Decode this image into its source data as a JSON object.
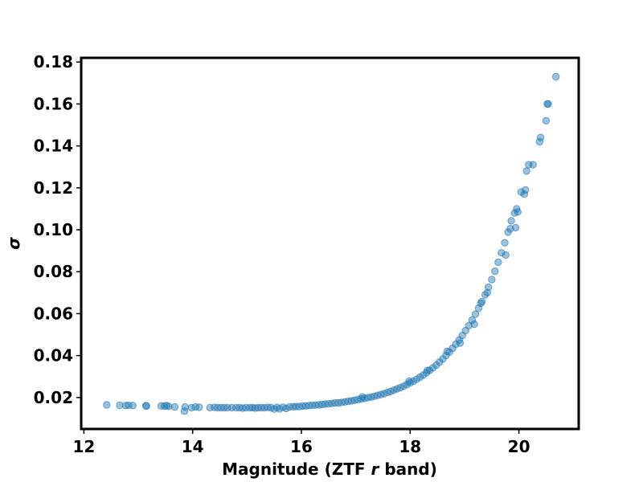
{
  "chart_data": {
    "type": "scatter",
    "title": "",
    "xlabel_parts": [
      "Magnitude (ZTF ",
      "r",
      " band)"
    ],
    "ylabel": "σ",
    "xlim": [
      11.95,
      21.1
    ],
    "ylim": [
      0.005,
      0.182
    ],
    "xticks": [
      12,
      14,
      16,
      18,
      20
    ],
    "xtick_labels": [
      "12",
      "14",
      "16",
      "18",
      "20"
    ],
    "yticks": [
      0.02,
      0.04,
      0.06,
      0.08,
      0.1,
      0.12,
      0.14,
      0.16,
      0.18
    ],
    "ytick_labels": [
      "0.02",
      "0.04",
      "0.06",
      "0.08",
      "0.10",
      "0.12",
      "0.14",
      "0.16",
      "0.18"
    ],
    "grid": false,
    "legend": "none",
    "color": "#1f77b4",
    "points": [
      [
        12.42,
        0.0165
      ],
      [
        12.66,
        0.0163
      ],
      [
        12.77,
        0.0162
      ],
      [
        12.82,
        0.0163
      ],
      [
        12.9,
        0.0162
      ],
      [
        13.14,
        0.0161
      ],
      [
        13.15,
        0.0159
      ],
      [
        13.42,
        0.016
      ],
      [
        13.48,
        0.0159
      ],
      [
        13.52,
        0.0161
      ],
      [
        13.56,
        0.0158
      ],
      [
        13.67,
        0.0155
      ],
      [
        13.85,
        0.0135
      ],
      [
        13.86,
        0.0155
      ],
      [
        13.98,
        0.0152
      ],
      [
        14.05,
        0.0155
      ],
      [
        14.12,
        0.0154
      ],
      [
        14.32,
        0.0152
      ],
      [
        14.4,
        0.0153
      ],
      [
        14.46,
        0.0151
      ],
      [
        14.52,
        0.0152
      ],
      [
        14.58,
        0.0152
      ],
      [
        14.64,
        0.0151
      ],
      [
        14.72,
        0.0152
      ],
      [
        14.8,
        0.0151
      ],
      [
        14.86,
        0.0152
      ],
      [
        14.92,
        0.015
      ],
      [
        14.98,
        0.0151
      ],
      [
        15.05,
        0.0151
      ],
      [
        15.1,
        0.0152
      ],
      [
        15.15,
        0.015
      ],
      [
        15.2,
        0.0151
      ],
      [
        15.26,
        0.0152
      ],
      [
        15.32,
        0.0151
      ],
      [
        15.38,
        0.0153
      ],
      [
        15.44,
        0.0152
      ],
      [
        15.5,
        0.0145
      ],
      [
        15.55,
        0.0153
      ],
      [
        15.6,
        0.0146
      ],
      [
        15.66,
        0.0154
      ],
      [
        15.72,
        0.0148
      ],
      [
        15.78,
        0.0155
      ],
      [
        15.85,
        0.0156
      ],
      [
        15.9,
        0.0157
      ],
      [
        15.96,
        0.0157
      ],
      [
        16.02,
        0.0159
      ],
      [
        16.08,
        0.016
      ],
      [
        16.14,
        0.0162
      ],
      [
        16.2,
        0.0163
      ],
      [
        16.26,
        0.0164
      ],
      [
        16.32,
        0.0165
      ],
      [
        16.38,
        0.0167
      ],
      [
        16.44,
        0.0169
      ],
      [
        16.5,
        0.017
      ],
      [
        16.56,
        0.0172
      ],
      [
        16.62,
        0.0174
      ],
      [
        16.68,
        0.0175
      ],
      [
        16.74,
        0.0177
      ],
      [
        16.8,
        0.0179
      ],
      [
        16.86,
        0.0182
      ],
      [
        16.92,
        0.0184
      ],
      [
        16.98,
        0.0187
      ],
      [
        17.04,
        0.019
      ],
      [
        17.1,
        0.0193
      ],
      [
        17.12,
        0.0203
      ],
      [
        17.16,
        0.0196
      ],
      [
        17.22,
        0.0199
      ],
      [
        17.28,
        0.0202
      ],
      [
        17.34,
        0.0206
      ],
      [
        17.4,
        0.021
      ],
      [
        17.46,
        0.0214
      ],
      [
        17.52,
        0.0219
      ],
      [
        17.58,
        0.0224
      ],
      [
        17.64,
        0.0229
      ],
      [
        17.7,
        0.0235
      ],
      [
        17.76,
        0.0241
      ],
      [
        17.82,
        0.0247
      ],
      [
        17.88,
        0.0254
      ],
      [
        17.94,
        0.0262
      ],
      [
        17.98,
        0.0278
      ],
      [
        18.0,
        0.027
      ],
      [
        18.06,
        0.0278
      ],
      [
        18.12,
        0.0287
      ],
      [
        18.18,
        0.0297
      ],
      [
        18.24,
        0.0307
      ],
      [
        18.3,
        0.0318
      ],
      [
        18.32,
        0.033
      ],
      [
        18.36,
        0.033
      ],
      [
        18.42,
        0.0342
      ],
      [
        18.48,
        0.0355
      ],
      [
        18.54,
        0.0369
      ],
      [
        18.6,
        0.0384
      ],
      [
        18.66,
        0.04
      ],
      [
        18.68,
        0.042
      ],
      [
        18.72,
        0.0417
      ],
      [
        18.78,
        0.0435
      ],
      [
        18.84,
        0.0454
      ],
      [
        18.9,
        0.0474
      ],
      [
        18.92,
        0.046
      ],
      [
        18.96,
        0.0496
      ],
      [
        19.02,
        0.0519
      ],
      [
        19.08,
        0.0543
      ],
      [
        19.14,
        0.0569
      ],
      [
        19.18,
        0.055
      ],
      [
        19.2,
        0.0597
      ],
      [
        19.26,
        0.0626
      ],
      [
        19.3,
        0.065
      ],
      [
        19.32,
        0.0657
      ],
      [
        19.38,
        0.069
      ],
      [
        19.42,
        0.07
      ],
      [
        19.44,
        0.0726
      ],
      [
        19.5,
        0.0763
      ],
      [
        19.56,
        0.0803
      ],
      [
        19.62,
        0.0845
      ],
      [
        19.68,
        0.089
      ],
      [
        19.74,
        0.0938
      ],
      [
        19.76,
        0.088
      ],
      [
        19.8,
        0.0989
      ],
      [
        19.84,
        0.1005
      ],
      [
        19.86,
        0.1043
      ],
      [
        19.92,
        0.108
      ],
      [
        19.94,
        0.101
      ],
      [
        19.96,
        0.11
      ],
      [
        19.98,
        0.1085
      ],
      [
        20.04,
        0.118
      ],
      [
        20.1,
        0.117
      ],
      [
        20.12,
        0.119
      ],
      [
        20.14,
        0.128
      ],
      [
        20.18,
        0.131
      ],
      [
        20.26,
        0.131
      ],
      [
        20.38,
        0.142
      ],
      [
        20.4,
        0.144
      ],
      [
        20.5,
        0.152
      ],
      [
        20.52,
        0.16
      ],
      [
        20.54,
        0.16
      ],
      [
        20.68,
        0.173
      ]
    ]
  }
}
